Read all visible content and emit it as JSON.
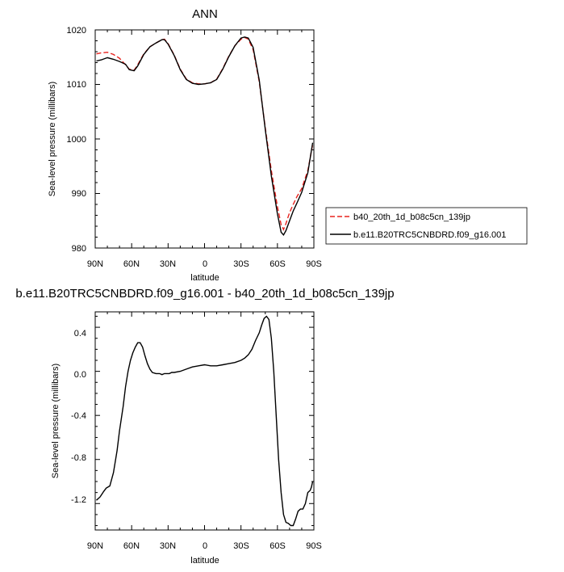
{
  "chart_data": [
    {
      "type": "line",
      "title": "ANN",
      "xlabel": "latitude",
      "ylabel": "Sea-level pressure (millibars)",
      "x_ticks": [
        "90N",
        "60N",
        "30N",
        "0",
        "30S",
        "60S",
        "90S"
      ],
      "y_ticks": [
        "980",
        "990",
        "1000",
        "1010",
        "1020"
      ],
      "xlim": [
        90,
        -90
      ],
      "ylim": [
        980,
        1020
      ],
      "legend_position": "right",
      "series": [
        {
          "name": "b40_20th_1d_b08c5cn_139jp",
          "color": "#e8231e",
          "style": "dashed",
          "x": [
            89,
            85,
            80,
            75,
            70,
            65,
            62,
            58,
            55,
            50,
            45,
            40,
            35,
            33,
            30,
            25,
            20,
            15,
            10,
            5,
            0,
            -5,
            -10,
            -15,
            -20,
            -25,
            -30,
            -33,
            -36,
            -40,
            -45,
            -50,
            -55,
            -60,
            -63,
            -65,
            -67,
            -70,
            -73,
            -76,
            -80,
            -85,
            -89
          ],
          "y": [
            1015.6,
            1015.8,
            1015.9,
            1015.5,
            1014.8,
            1013.6,
            1012.8,
            1012.6,
            1013.6,
            1015.6,
            1016.9,
            1017.6,
            1018.2,
            1018.3,
            1017.5,
            1015.4,
            1012.8,
            1011.0,
            1010.3,
            1010.1,
            1010.1,
            1010.3,
            1011.0,
            1012.9,
            1015.2,
            1017.1,
            1018.3,
            1018.6,
            1018.3,
            1016.4,
            1010.5,
            1002.0,
            994.2,
            987.6,
            984.3,
            983.4,
            984.5,
            986.5,
            988.0,
            989.4,
            990.9,
            994.2,
            999.0
          ]
        },
        {
          "name": "b.e11.B20TRC5CNBDRD.f09_g16.001",
          "color": "#000000",
          "style": "solid",
          "x": [
            89,
            85,
            80,
            75,
            70,
            65,
            62,
            58,
            55,
            50,
            45,
            40,
            35,
            33,
            30,
            25,
            20,
            15,
            10,
            5,
            0,
            -5,
            -10,
            -15,
            -20,
            -25,
            -30,
            -33,
            -36,
            -40,
            -45,
            -50,
            -55,
            -60,
            -63,
            -65,
            -67,
            -70,
            -73,
            -76,
            -80,
            -85,
            -89
          ],
          "y": [
            1014.3,
            1014.5,
            1014.9,
            1014.6,
            1014.2,
            1013.7,
            1012.7,
            1012.5,
            1013.4,
            1015.5,
            1016.9,
            1017.6,
            1018.2,
            1018.2,
            1017.4,
            1015.3,
            1012.7,
            1010.9,
            1010.2,
            1010.0,
            1010.1,
            1010.3,
            1010.9,
            1012.8,
            1015.1,
            1017.1,
            1018.5,
            1018.7,
            1018.5,
            1016.8,
            1010.8,
            1001.7,
            993.2,
            986.3,
            982.9,
            982.4,
            983.2,
            985.0,
            986.8,
            988.2,
            990.2,
            993.8,
            999.3
          ]
        }
      ]
    },
    {
      "type": "line",
      "title": "b.e11.B20TRC5CNBDRD.f09_g16.001 - b40_20th_1d_b08c5cn_139jp",
      "xlabel": "latitude",
      "ylabel": "Sea-level pressure (millibars)",
      "x_ticks": [
        "90N",
        "60N",
        "30N",
        "0",
        "30S",
        "60S",
        "90S"
      ],
      "y_ticks": [
        "0.4",
        "0.0",
        "-0.4",
        "-0.8",
        "-1.2"
      ],
      "xlim": [
        90,
        -90
      ],
      "ylim": [
        -1.44,
        0.54
      ],
      "series": [
        {
          "color": "#000000",
          "style": "solid",
          "x": [
            89,
            86,
            83,
            81,
            78,
            75,
            72,
            70,
            67,
            65,
            63,
            61,
            59,
            57,
            55,
            53,
            51,
            49,
            47,
            45,
            43,
            40,
            37,
            35,
            33,
            31,
            29,
            27,
            25,
            20,
            15,
            10,
            5,
            0,
            -5,
            -10,
            -15,
            -20,
            -25,
            -30,
            -33,
            -36,
            -39,
            -42,
            -45,
            -47,
            -49,
            -51,
            -53,
            -55,
            -57,
            -59,
            -61,
            -63,
            -65,
            -67,
            -69,
            -71,
            -73,
            -75,
            -77,
            -79,
            -81,
            -83,
            -85,
            -87,
            -88,
            -89
          ],
          "y": [
            -1.17,
            -1.14,
            -1.09,
            -1.06,
            -1.04,
            -0.92,
            -0.72,
            -0.54,
            -0.32,
            -0.14,
            0.0,
            0.1,
            0.17,
            0.22,
            0.26,
            0.26,
            0.22,
            0.14,
            0.07,
            0.02,
            -0.01,
            -0.02,
            -0.02,
            -0.03,
            -0.02,
            -0.02,
            -0.02,
            -0.01,
            -0.01,
            0.0,
            0.02,
            0.04,
            0.05,
            0.06,
            0.05,
            0.05,
            0.06,
            0.07,
            0.08,
            0.1,
            0.12,
            0.15,
            0.2,
            0.28,
            0.35,
            0.42,
            0.48,
            0.5,
            0.47,
            0.3,
            0.0,
            -0.4,
            -0.8,
            -1.1,
            -1.3,
            -1.37,
            -1.38,
            -1.4,
            -1.4,
            -1.34,
            -1.27,
            -1.25,
            -1.25,
            -1.2,
            -1.1,
            -1.08,
            -1.05,
            -1.0
          ]
        }
      ]
    }
  ],
  "legend": {
    "entries": [
      {
        "label": "b40_20th_1d_b08c5cn_139jp",
        "color": "#e8231e",
        "style": "dashed"
      },
      {
        "label": "b.e11.B20TRC5CNBDRD.f09_g16.001",
        "color": "#000000",
        "style": "solid"
      }
    ]
  }
}
